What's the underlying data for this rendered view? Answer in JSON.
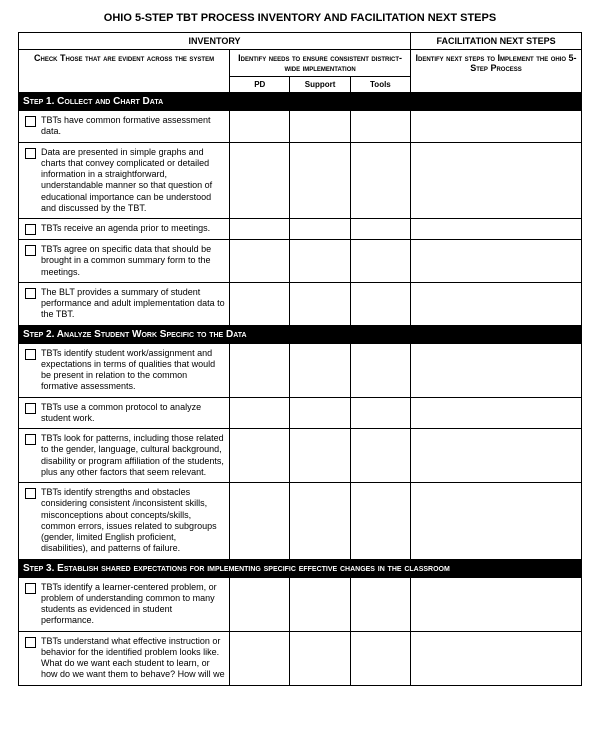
{
  "title": "OHIO 5-STEP TBT PROCESS INVENTORY AND FACILITATION NEXT STEPS",
  "headers": {
    "inventory": "INVENTORY",
    "facilitation": "FACILITATION NEXT STEPS",
    "check": "Check Those that are evident across the system",
    "identify": "Identify needs to ensure consistent district-wide implementation",
    "nextsteps": "Identify next steps to Implement the ohio 5-Step Process",
    "pd": "PD",
    "support": "Support",
    "tools": "Tools"
  },
  "steps": {
    "s1": {
      "title": "Step 1. Collect and Chart Data",
      "items": [
        "TBTs have common formative assessment data.",
        "Data are presented in simple graphs and charts that convey complicated or detailed information in a straightforward, understandable manner so that question of educational importance can be understood and discussed by the TBT.",
        "TBTs receive an agenda prior to meetings.",
        "TBTs agree on specific data that should be brought in a common summary form to the meetings.",
        "The BLT provides a summary of student performance and adult implementation data to the TBT."
      ]
    },
    "s2": {
      "title": "Step 2. Analyze Student Work Specific to the Data",
      "items": [
        "TBTs identify student work/assignment and expectations in terms of qualities that would be present in relation to the common formative assessments.",
        "TBTs use a common protocol to analyze student work.",
        "TBTs look for patterns, including those related to the gender, language, cultural background, disability or program affiliation of the students, plus any other factors that seem relevant.",
        "TBTs identify strengths and obstacles considering consistent /inconsistent skills, misconceptions about concepts/skills, common errors, issues related to subgroups (gender, limited English proficient, disabilities), and patterns of failure."
      ]
    },
    "s3": {
      "title": "Step 3. Establish shared expectations for implementing specific effective changes in the classroom",
      "items": [
        "TBTs identify a learner-centered problem, or problem of understanding common to many students as evidenced in student performance.",
        "TBTs understand what effective instruction or behavior for the identified problem looks like.  What do we want each student to learn, or how do we want them to behave?  How will we"
      ]
    }
  }
}
